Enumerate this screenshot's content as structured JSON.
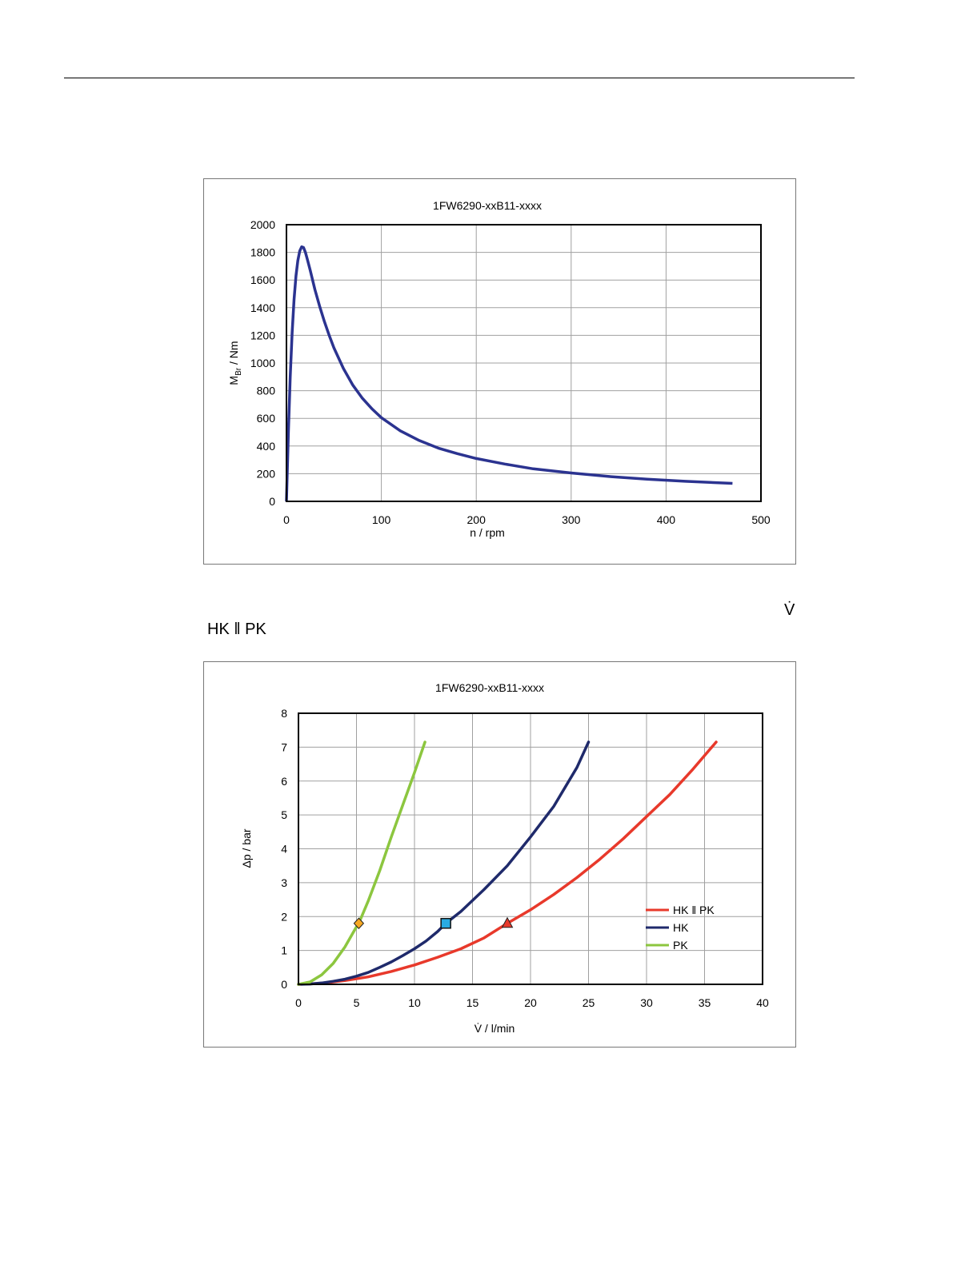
{
  "page": {
    "side_label_vdot": "V̇",
    "side_label_combo": "HK ‖ PK"
  },
  "chart_data": [
    {
      "type": "line",
      "title": "1FW6290-xxB11-xxxx",
      "xlabel": "n / rpm",
      "ylabel_main": "M",
      "ylabel_sub": "Br",
      "ylabel_rest": " / Nm",
      "xlim": [
        0,
        500
      ],
      "ylim": [
        0,
        2000
      ],
      "x_ticks": [
        0,
        100,
        200,
        300,
        400,
        500
      ],
      "y_ticks": [
        0,
        200,
        400,
        600,
        800,
        1000,
        1200,
        1400,
        1600,
        1800,
        2000
      ],
      "grid": true,
      "line_color": "#2b3390",
      "series": [
        {
          "x": [
            0,
            2,
            4,
            6,
            8,
            10,
            12,
            14,
            16,
            18,
            20,
            22,
            25,
            30,
            35,
            40,
            45,
            50,
            60,
            70,
            80,
            90,
            100,
            120,
            140,
            160,
            180,
            200,
            230,
            260,
            300,
            340,
            380,
            420,
            470
          ],
          "y": [
            0,
            500,
            900,
            1220,
            1460,
            1630,
            1740,
            1810,
            1840,
            1835,
            1800,
            1750,
            1670,
            1530,
            1410,
            1300,
            1200,
            1110,
            960,
            840,
            745,
            670,
            605,
            510,
            440,
            385,
            345,
            310,
            270,
            235,
            205,
            180,
            160,
            145,
            130
          ]
        }
      ]
    },
    {
      "type": "line",
      "title": "1FW6290-xxB11-xxxx",
      "xlabel": "V̇ / l/min",
      "ylabel": "Δp / bar",
      "xlim": [
        0,
        40
      ],
      "ylim": [
        0,
        8
      ],
      "x_ticks": [
        0,
        5,
        10,
        15,
        20,
        25,
        30,
        35,
        40
      ],
      "y_ticks": [
        0,
        1,
        2,
        3,
        4,
        5,
        6,
        7,
        8
      ],
      "grid": true,
      "legend_position": "right",
      "series": [
        {
          "name": "HK ‖ PK",
          "color": "#e8392b",
          "marker": "triangle",
          "marker_point": [
            18,
            1.8
          ],
          "x": [
            0,
            2,
            4,
            6,
            8,
            10,
            12,
            14,
            16,
            18,
            20,
            22,
            24,
            26,
            28,
            30,
            32,
            34,
            36
          ],
          "y": [
            0,
            0.03,
            0.11,
            0.22,
            0.38,
            0.57,
            0.8,
            1.05,
            1.37,
            1.8,
            2.2,
            2.65,
            3.15,
            3.7,
            4.3,
            4.95,
            5.6,
            6.35,
            7.15
          ]
        },
        {
          "name": "HK",
          "color": "#1f2a6b",
          "marker": "square",
          "marker_point": [
            12.7,
            1.8
          ],
          "x": [
            0,
            1,
            2,
            3,
            4,
            5,
            6,
            7,
            8,
            9,
            10,
            11,
            12,
            12.7,
            14,
            16,
            18,
            20,
            22,
            24,
            25
          ],
          "y": [
            0,
            0.01,
            0.04,
            0.09,
            0.15,
            0.24,
            0.35,
            0.5,
            0.66,
            0.85,
            1.05,
            1.28,
            1.56,
            1.8,
            2.15,
            2.8,
            3.5,
            4.35,
            5.25,
            6.4,
            7.15
          ]
        },
        {
          "name": "PK",
          "color": "#8cc63f",
          "marker": "diamond",
          "marker_point": [
            5.2,
            1.8
          ],
          "x": [
            0,
            1,
            2,
            3,
            4,
            5,
            5.2,
            6,
            7,
            8,
            9,
            10,
            10.9
          ],
          "y": [
            0,
            0.07,
            0.28,
            0.62,
            1.1,
            1.7,
            1.8,
            2.45,
            3.35,
            4.35,
            5.3,
            6.25,
            7.15
          ]
        }
      ]
    }
  ]
}
